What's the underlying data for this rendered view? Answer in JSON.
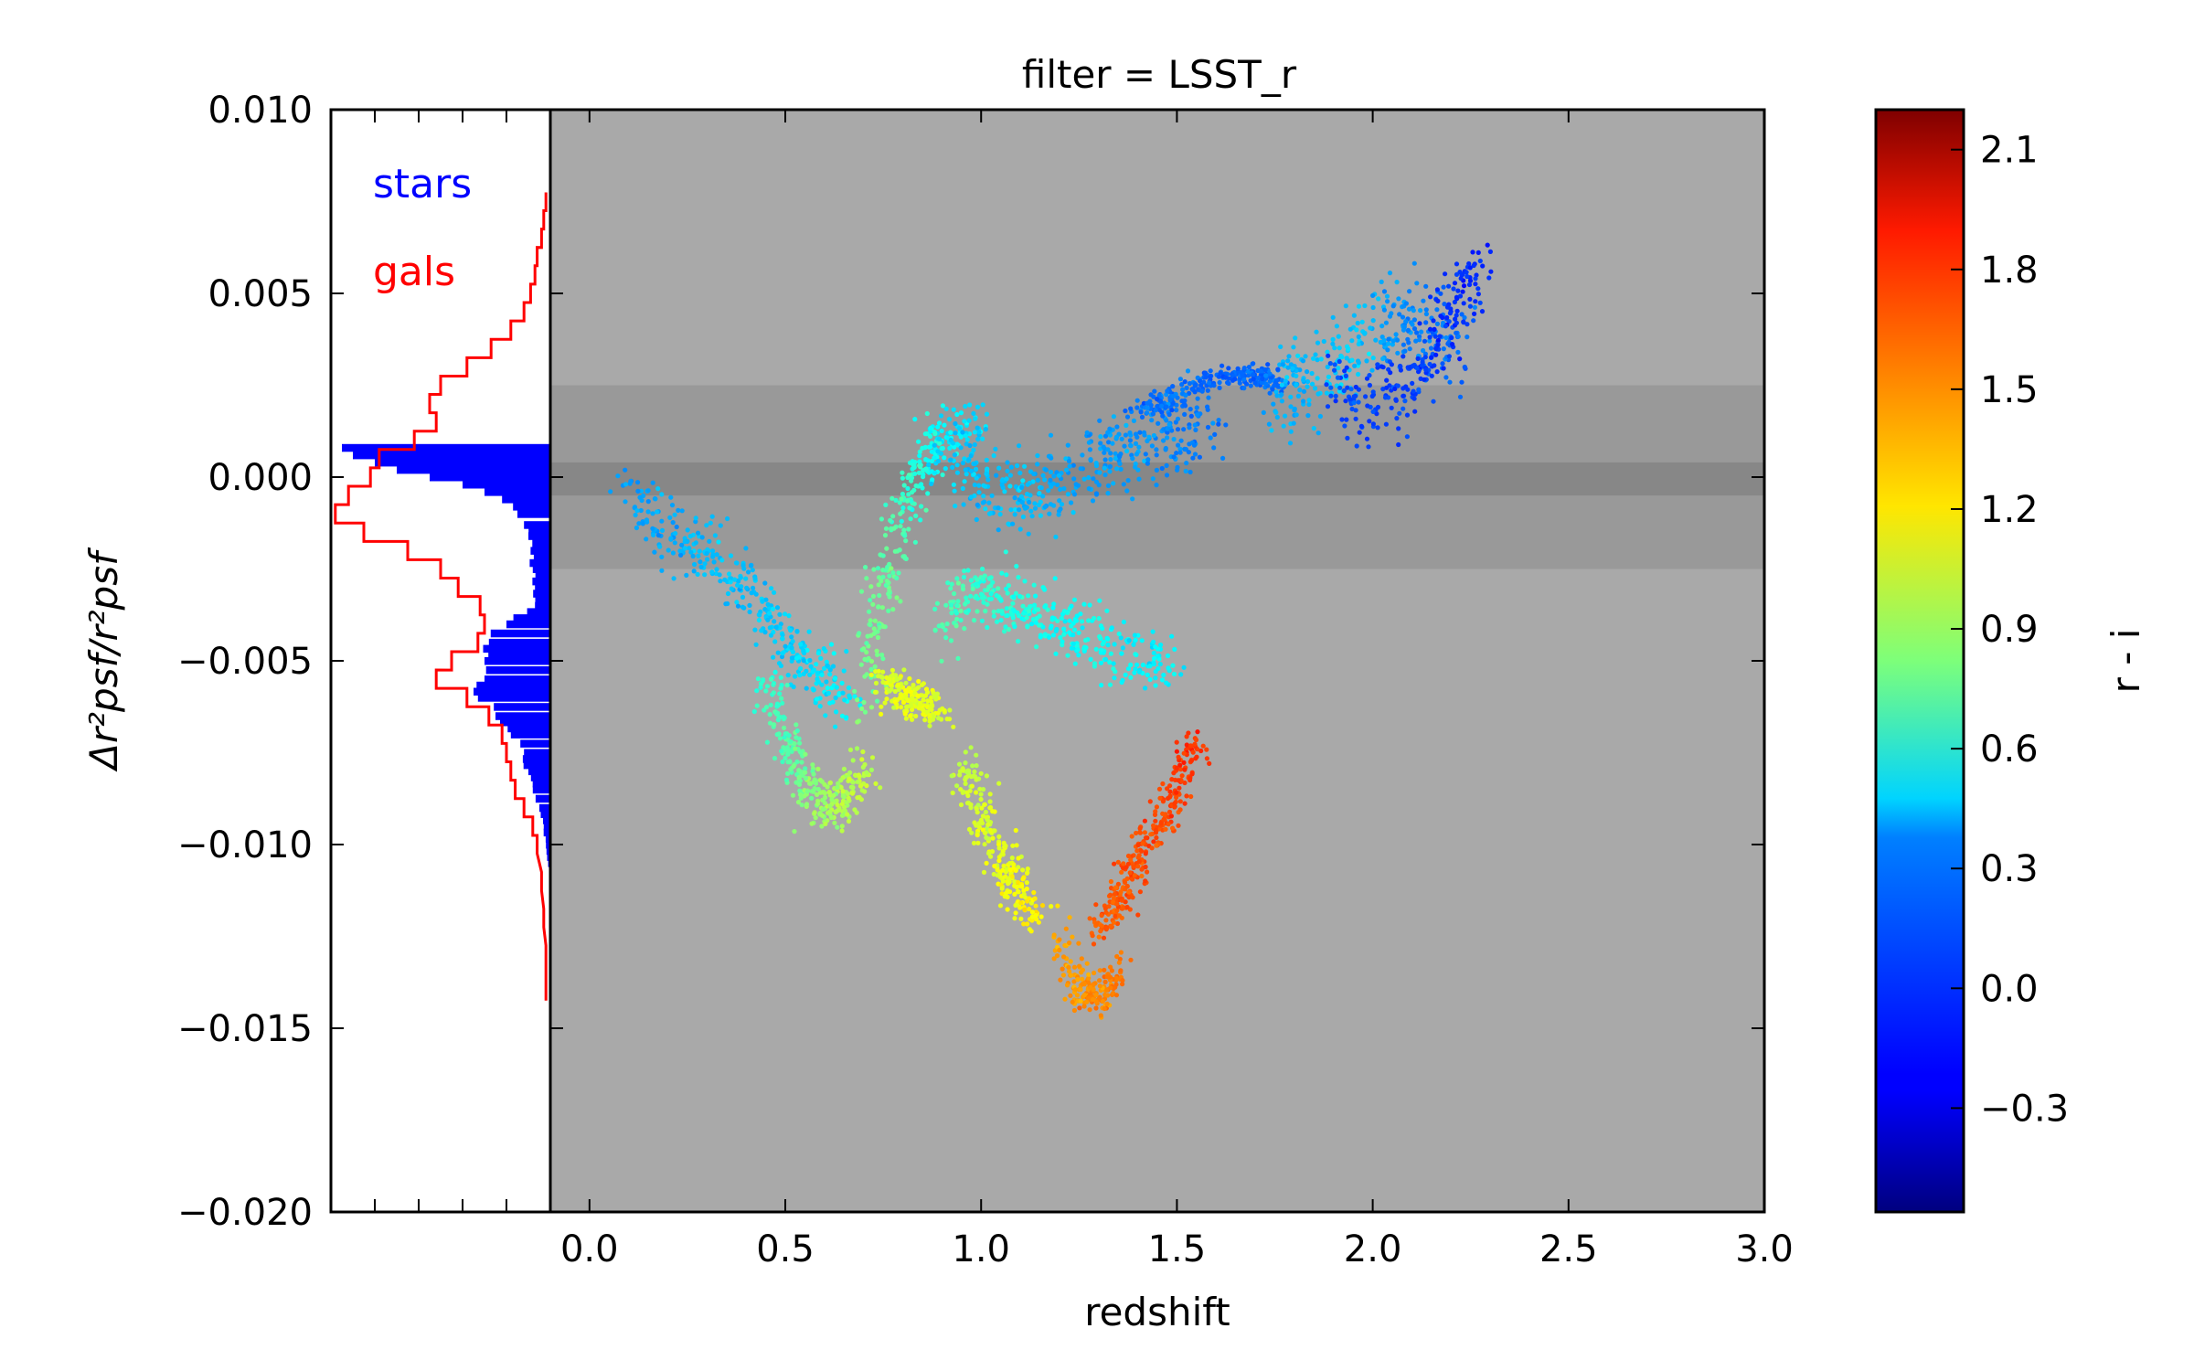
{
  "chart_data": {
    "type": "scatter",
    "title": "filter = LSST_r",
    "xlabel": "redshift",
    "ylabel": "Δr²psf/r²psf",
    "xlim": [
      -0.1,
      3.0
    ],
    "ylim": [
      -0.02,
      0.01
    ],
    "xticks": [
      "0.0",
      "0.5",
      "1.0",
      "1.5",
      "2.0",
      "2.5",
      "3.0"
    ],
    "yticks": [
      "0.010",
      "0.005",
      "0.000",
      "−0.005",
      "−0.010",
      "−0.015",
      "−0.020"
    ],
    "background_color": "#a9a9a9",
    "bands": [
      {
        "ymin": -0.0025,
        "ymax": 0.0025,
        "color": "#999999"
      },
      {
        "ymin": -0.0005,
        "ymax": 0.0004,
        "color": "#878787"
      }
    ],
    "colorbar": {
      "label": "r - i",
      "vmin": -0.56,
      "vmax": 2.2,
      "colormap": "jet",
      "ticks": [
        "2.1",
        "1.8",
        "1.5",
        "1.2",
        "0.9",
        "0.6",
        "0.3",
        "0.0",
        "−0.3"
      ],
      "tick_values": [
        2.1,
        1.8,
        1.5,
        1.2,
        0.9,
        0.6,
        0.3,
        0.0,
        -0.3
      ]
    },
    "histogram_legend": [
      {
        "label": "stars",
        "color": "#0000ff"
      },
      {
        "label": "gals",
        "color": "#ff0000"
      }
    ],
    "scatter_tracks": [
      {
        "name": "",
        "x": [
          0.1,
          0.2,
          0.3,
          0.4,
          0.5,
          0.6,
          0.65
        ],
        "y": [
          -0.0005,
          -0.0015,
          -0.002,
          -0.003,
          -0.0045,
          -0.0055,
          -0.006
        ],
        "c": [
          0.2,
          0.25,
          0.3,
          0.3,
          0.35,
          0.4,
          0.45
        ],
        "spread": 0.0009
      },
      {
        "name": "",
        "x": [
          0.45,
          0.5,
          0.55,
          0.6,
          0.65,
          0.7
        ],
        "y": [
          -0.0055,
          -0.0072,
          -0.0082,
          -0.009,
          -0.0088,
          -0.008
        ],
        "c": [
          0.6,
          0.7,
          0.8,
          0.9,
          0.95,
          1.0
        ],
        "spread": 0.0007
      },
      {
        "name": "",
        "x": [
          0.7,
          0.75,
          0.8,
          0.85,
          0.9,
          1.0
        ],
        "y": [
          -0.006,
          -0.003,
          -0.001,
          0.0005,
          0.001,
          0.0015
        ],
        "c": [
          0.8,
          0.75,
          0.65,
          0.55,
          0.45,
          0.35
        ],
        "spread": 0.0008
      },
      {
        "name": "",
        "x": [
          0.75,
          0.8,
          0.85,
          0.9
        ],
        "y": [
          -0.0055,
          -0.006,
          -0.0062,
          -0.0063
        ],
        "c": [
          1.05,
          1.1,
          1.1,
          1.05
        ],
        "spread": 0.0005
      },
      {
        "name": "",
        "x": [
          0.9,
          1.0,
          1.1,
          1.2,
          1.3,
          1.4,
          1.5,
          1.6
        ],
        "y": [
          0.0005,
          0.0,
          -0.0005,
          -0.0002,
          0.0005,
          0.0008,
          0.0012,
          0.0015
        ],
        "c": [
          0.35,
          0.3,
          0.3,
          0.25,
          0.2,
          0.2,
          0.15,
          0.1
        ],
        "spread": 0.0011
      },
      {
        "name": "",
        "x": [
          1.4,
          1.5,
          1.6,
          1.7,
          1.75
        ],
        "y": [
          0.0018,
          0.0022,
          0.0027,
          0.0028,
          0.0026
        ],
        "c": [
          0.1,
          0.1,
          0.05,
          0.05,
          0.1
        ],
        "spread": 0.0003
      },
      {
        "name": "",
        "x": [
          0.9,
          1.0,
          1.1,
          1.2,
          1.3,
          1.4,
          1.5
        ],
        "y": [
          -0.004,
          -0.003,
          -0.0035,
          -0.004,
          -0.0045,
          -0.005,
          -0.005
        ],
        "c": [
          0.7,
          0.6,
          0.55,
          0.5,
          0.5,
          0.45,
          0.45
        ],
        "spread": 0.0009
      },
      {
        "name": "",
        "x": [
          0.95,
          1.0,
          1.05,
          1.1,
          1.15
        ],
        "y": [
          -0.008,
          -0.009,
          -0.0105,
          -0.0115,
          -0.012
        ],
        "c": [
          1.0,
          1.05,
          1.1,
          1.15,
          1.2
        ],
        "spread": 0.0008
      },
      {
        "name": "",
        "x": [
          1.2,
          1.25,
          1.3,
          1.35
        ],
        "y": [
          -0.0125,
          -0.014,
          -0.0142,
          -0.0135
        ],
        "c": [
          1.4,
          1.45,
          1.5,
          1.55
        ],
        "spread": 0.0005
      },
      {
        "name": "",
        "x": [
          1.3,
          1.35,
          1.4,
          1.45,
          1.5,
          1.55
        ],
        "y": [
          -0.0125,
          -0.0115,
          -0.0105,
          -0.0095,
          -0.0085,
          -0.007
        ],
        "c": [
          1.6,
          1.62,
          1.65,
          1.65,
          1.7,
          1.72
        ],
        "spread": 0.0004
      },
      {
        "name": "",
        "x": [
          1.75,
          1.85,
          1.95,
          2.05,
          2.15,
          2.25
        ],
        "y": [
          0.0022,
          0.0028,
          0.0035,
          0.0042,
          0.004,
          0.0035
        ],
        "c": [
          0.25,
          0.3,
          0.35,
          0.2,
          0.1,
          0.05
        ],
        "spread": 0.0012
      },
      {
        "name": "",
        "x": [
          1.9,
          2.0,
          2.1,
          2.2,
          2.28
        ],
        "y": [
          0.0022,
          0.002,
          0.0025,
          0.0045,
          0.0055
        ],
        "c": [
          0.0,
          -0.05,
          -0.05,
          -0.1,
          -0.1
        ],
        "spread": 0.0011
      }
    ],
    "stars_histogram": {
      "bin_centers": [
        0.0008,
        0.0006,
        0.0004,
        0.0002,
        0.0,
        -0.0002,
        -0.0004,
        -0.0006,
        -0.0008,
        -0.001,
        -0.0013,
        -0.0016,
        -0.002,
        -0.0025,
        -0.003,
        -0.0035,
        -0.004,
        -0.0045,
        -0.005,
        -0.0055,
        -0.006,
        -0.0065,
        -0.007,
        -0.0075,
        -0.008,
        -0.0085,
        -0.009,
        -0.0095,
        -0.01,
        -0.0105
      ],
      "lengths": [
        0.95,
        0.9,
        0.8,
        0.7,
        0.55,
        0.4,
        0.3,
        0.22,
        0.17,
        0.15,
        0.12,
        0.1,
        0.09,
        0.08,
        0.07,
        0.07,
        0.2,
        0.28,
        0.3,
        0.3,
        0.33,
        0.25,
        0.18,
        0.12,
        0.1,
        0.08,
        0.05,
        0.03,
        0.02,
        0.01
      ]
    },
    "gals_histogram": {
      "bin_centers": [
        0.0075,
        0.007,
        0.0065,
        0.006,
        0.0055,
        0.005,
        0.0045,
        0.004,
        0.0035,
        0.003,
        0.0025,
        0.002,
        0.0015,
        0.001,
        0.0005,
        0.0,
        -0.0005,
        -0.001,
        -0.0015,
        -0.002,
        -0.0025,
        -0.003,
        -0.0035,
        -0.004,
        -0.0045,
        -0.005,
        -0.0055,
        -0.006,
        -0.0065,
        -0.007,
        -0.0075,
        -0.008,
        -0.0085,
        -0.009,
        -0.0095,
        -0.01,
        -0.011,
        -0.012,
        -0.013,
        -0.014
      ],
      "lengths": [
        0.02,
        0.03,
        0.04,
        0.06,
        0.07,
        0.09,
        0.12,
        0.18,
        0.27,
        0.38,
        0.5,
        0.55,
        0.52,
        0.62,
        0.78,
        0.82,
        0.92,
        0.98,
        0.85,
        0.65,
        0.5,
        0.42,
        0.32,
        0.3,
        0.33,
        0.45,
        0.52,
        0.38,
        0.28,
        0.22,
        0.2,
        0.18,
        0.16,
        0.12,
        0.08,
        0.06,
        0.04,
        0.03,
        0.02,
        0.02
      ]
    }
  }
}
